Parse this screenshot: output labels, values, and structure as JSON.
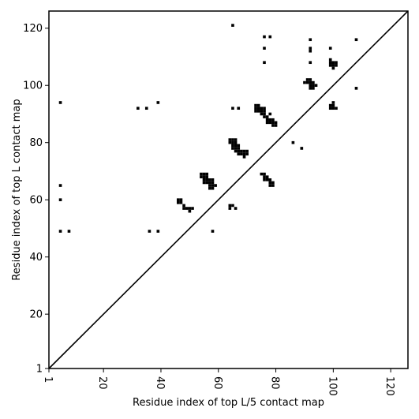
{
  "chart_data": {
    "type": "scatter",
    "title": "",
    "xlabel": "Residue index of top L/5 contact map",
    "ylabel": "Residue index of top L contact map",
    "xlim": [
      1,
      126
    ],
    "ylim": [
      1,
      126
    ],
    "x_ticks": [
      1,
      20,
      40,
      60,
      80,
      100,
      120
    ],
    "y_ticks": [
      1,
      20,
      40,
      60,
      80,
      100,
      120
    ],
    "x_tick_labels": [
      "1",
      "20",
      "40",
      "60",
      "80",
      "100",
      "120"
    ],
    "y_tick_labels": [
      "1",
      "20",
      "40",
      "60",
      "80",
      "100",
      "120"
    ],
    "diagonal": true,
    "grid": false,
    "marker_color": "#000000",
    "series": [
      {
        "values": [
          [
            5,
            94
          ],
          [
            5,
            65
          ],
          [
            5,
            60
          ],
          [
            5,
            49
          ],
          [
            8,
            49
          ],
          [
            32,
            92
          ],
          [
            35,
            92
          ],
          [
            36,
            49
          ],
          [
            39,
            94
          ],
          [
            39,
            49
          ],
          [
            46,
            60
          ],
          [
            47,
            60
          ],
          [
            46,
            59
          ],
          [
            47,
            59
          ],
          [
            48,
            58
          ],
          [
            48,
            57
          ],
          [
            49,
            57
          ],
          [
            50,
            57
          ],
          [
            50,
            56
          ],
          [
            51,
            57
          ],
          [
            54,
            69
          ],
          [
            55,
            69
          ],
          [
            56,
            69
          ],
          [
            54,
            68
          ],
          [
            55,
            68
          ],
          [
            56,
            68
          ],
          [
            55,
            67
          ],
          [
            56,
            67
          ],
          [
            55,
            66
          ],
          [
            56,
            66
          ],
          [
            57,
            67
          ],
          [
            58,
            67
          ],
          [
            57,
            66
          ],
          [
            58,
            66
          ],
          [
            57,
            65
          ],
          [
            58,
            65
          ],
          [
            59,
            65
          ],
          [
            57,
            64
          ],
          [
            58,
            64
          ],
          [
            58,
            49
          ],
          [
            64,
            58
          ],
          [
            65,
            58
          ],
          [
            64,
            57
          ],
          [
            66,
            57
          ],
          [
            64,
            81
          ],
          [
            65,
            81
          ],
          [
            66,
            81
          ],
          [
            64,
            80
          ],
          [
            65,
            80
          ],
          [
            66,
            80
          ],
          [
            65,
            79
          ],
          [
            66,
            79
          ],
          [
            67,
            79
          ],
          [
            65,
            78
          ],
          [
            66,
            78
          ],
          [
            67,
            78
          ],
          [
            66,
            77
          ],
          [
            67,
            77
          ],
          [
            68,
            77
          ],
          [
            69,
            77
          ],
          [
            70,
            77
          ],
          [
            67,
            76
          ],
          [
            68,
            76
          ],
          [
            69,
            76
          ],
          [
            70,
            76
          ],
          [
            69,
            75
          ],
          [
            65,
            121
          ],
          [
            65,
            92
          ],
          [
            67,
            92
          ],
          [
            73,
            93
          ],
          [
            74,
            93
          ],
          [
            73,
            92
          ],
          [
            74,
            92
          ],
          [
            75,
            92
          ],
          [
            76,
            92
          ],
          [
            73,
            91
          ],
          [
            74,
            91
          ],
          [
            75,
            91
          ],
          [
            76,
            91
          ],
          [
            75,
            90
          ],
          [
            76,
            90
          ],
          [
            76,
            89
          ],
          [
            77,
            89
          ],
          [
            78,
            90
          ],
          [
            77,
            88
          ],
          [
            78,
            88
          ],
          [
            79,
            88
          ],
          [
            77,
            87
          ],
          [
            78,
            87
          ],
          [
            79,
            87
          ],
          [
            80,
            87
          ],
          [
            79,
            86
          ],
          [
            80,
            86
          ],
          [
            75,
            69
          ],
          [
            76,
            69
          ],
          [
            76,
            68
          ],
          [
            77,
            68
          ],
          [
            76,
            67
          ],
          [
            77,
            67
          ],
          [
            78,
            67
          ],
          [
            78,
            66
          ],
          [
            79,
            66
          ],
          [
            78,
            65
          ],
          [
            79,
            65
          ],
          [
            76,
            117
          ],
          [
            78,
            117
          ],
          [
            76,
            113
          ],
          [
            76,
            108
          ],
          [
            86,
            80
          ],
          [
            89,
            78
          ],
          [
            90,
            101
          ],
          [
            91,
            101
          ],
          [
            91,
            102
          ],
          [
            92,
            102
          ],
          [
            92,
            101
          ],
          [
            93,
            101
          ],
          [
            92,
            100
          ],
          [
            93,
            100
          ],
          [
            94,
            100
          ],
          [
            92,
            99
          ],
          [
            93,
            99
          ],
          [
            92,
            116
          ],
          [
            92,
            113
          ],
          [
            92,
            112
          ],
          [
            92,
            108
          ],
          [
            99,
            113
          ],
          [
            99,
            109
          ],
          [
            99,
            108
          ],
          [
            99,
            107
          ],
          [
            100,
            108
          ],
          [
            101,
            108
          ],
          [
            100,
            107
          ],
          [
            101,
            107
          ],
          [
            100,
            106
          ],
          [
            99,
            93
          ],
          [
            100,
            93
          ],
          [
            99,
            92
          ],
          [
            100,
            92
          ],
          [
            101,
            92
          ],
          [
            100,
            94
          ],
          [
            108,
            116
          ],
          [
            108,
            99
          ]
        ]
      }
    ]
  }
}
